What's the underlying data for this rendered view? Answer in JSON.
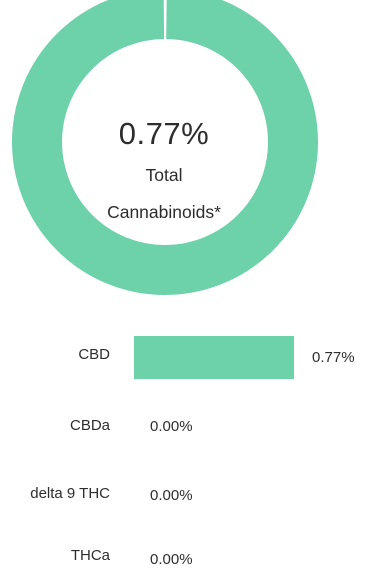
{
  "chart_data": [
    {
      "type": "pie",
      "variant": "donut",
      "center_value": "0.77%",
      "center_caption_line1": "Total",
      "center_caption_line2": "Cannabinoids*",
      "slices": [
        {
          "label": "CBD",
          "value": 0.77
        }
      ],
      "colors": {
        "slice": "#6dd1a9",
        "gap": "#ffffff"
      }
    },
    {
      "type": "bar",
      "orientation": "horizontal",
      "categories": [
        "CBD",
        "CBDa",
        "delta 9 THC",
        "THCa"
      ],
      "values": [
        0.77,
        0.0,
        0.0,
        0.0
      ],
      "value_labels": [
        "0.77%",
        "0.00%",
        "0.00%",
        "0.00%"
      ],
      "xlim": [
        0,
        0.77
      ],
      "colors": {
        "bar": "#6dd1a9"
      }
    }
  ]
}
